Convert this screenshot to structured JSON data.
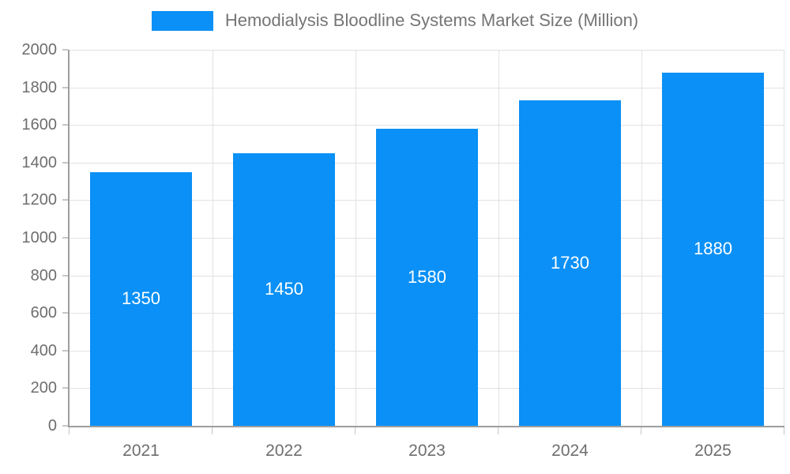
{
  "legend": {
    "label": "Hemodialysis Bloodline Systems Market Size (Million)"
  },
  "chart_data": {
    "type": "bar",
    "title": "Hemodialysis Bloodline Systems Market Size (Million)",
    "categories": [
      "2021",
      "2022",
      "2023",
      "2024",
      "2025"
    ],
    "values": [
      1350,
      1450,
      1580,
      1730,
      1880
    ],
    "value_labels": [
      "1350",
      "1450",
      "1580",
      "1730",
      "1880"
    ],
    "xlabel": "",
    "ylabel": "",
    "ylim": [
      0,
      2000
    ],
    "yticks": [
      0,
      200,
      400,
      600,
      800,
      1000,
      1200,
      1400,
      1600,
      1800,
      2000
    ],
    "grid": true,
    "legend_position": "top-center",
    "colors": {
      "bar": "#0a90f6",
      "value_label": "#ffffff",
      "axis": "#9e9e9e",
      "gridline": "#e2e2e2",
      "tick": "#c6c6c6",
      "tick_label": "#6e6e6e",
      "legend_text": "#757575"
    }
  }
}
